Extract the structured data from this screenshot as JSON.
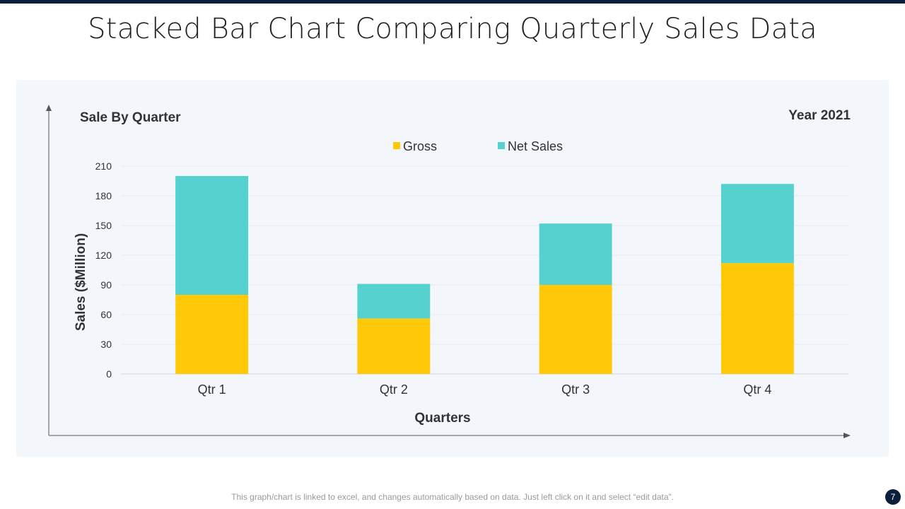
{
  "slide": {
    "title": "Stacked Bar Chart Comparing Quarterly Sales Data",
    "footnote": "This graph/chart is linked to excel, and changes automatically based on data. Just left click on it and select “edit data”.",
    "page_number": "7"
  },
  "chart_data": {
    "type": "bar",
    "stacked": true,
    "title": "Sale By Quarter",
    "subtitle": "Year 2021",
    "xlabel": "Quarters",
    "ylabel": "Sales ($Million)",
    "ylim": [
      0,
      210
    ],
    "yticks": [
      0,
      30,
      60,
      90,
      120,
      150,
      180,
      210
    ],
    "categories": [
      "Qtr 1",
      "Qtr 2",
      "Qtr 3",
      "Qtr 4"
    ],
    "series": [
      {
        "name": "Gross",
        "values": [
          80,
          56,
          90,
          112
        ],
        "color": "#ffc90a"
      },
      {
        "name": "Net Sales",
        "values": [
          120,
          35,
          62,
          80
        ],
        "color": "#55d2d0"
      }
    ],
    "legend_position": "top-center",
    "grid": true
  }
}
